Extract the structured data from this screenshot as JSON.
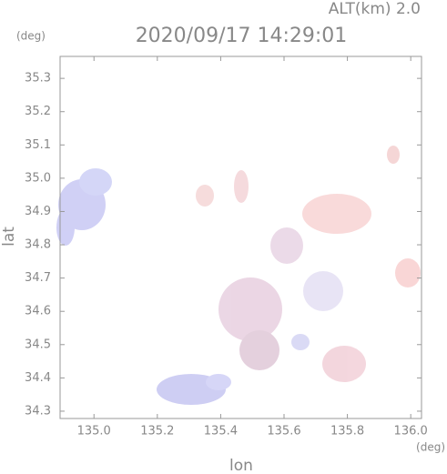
{
  "chart_data": {
    "type": "map",
    "title": "2020/09/17 14:29:01",
    "altitude_label": "ALT(km) 2.0",
    "y_unit": "(deg)",
    "x_unit": "(deg)",
    "x_label": "lon",
    "y_label": "lat",
    "xlim": [
      134.893,
      136.034
    ],
    "ylim": [
      34.278,
      35.366
    ],
    "xticks": [
      {
        "value": 135,
        "label": "135.0"
      },
      135.2,
      135.4,
      135.6,
      135.8,
      {
        "value": 136,
        "label": "136.0"
      }
    ],
    "yticks": [
      34.3,
      34.4,
      34.5,
      34.6,
      34.7,
      34.8,
      34.9,
      {
        "value": 35,
        "label": "35.0"
      },
      35.1,
      35.2,
      35.3
    ]
  }
}
